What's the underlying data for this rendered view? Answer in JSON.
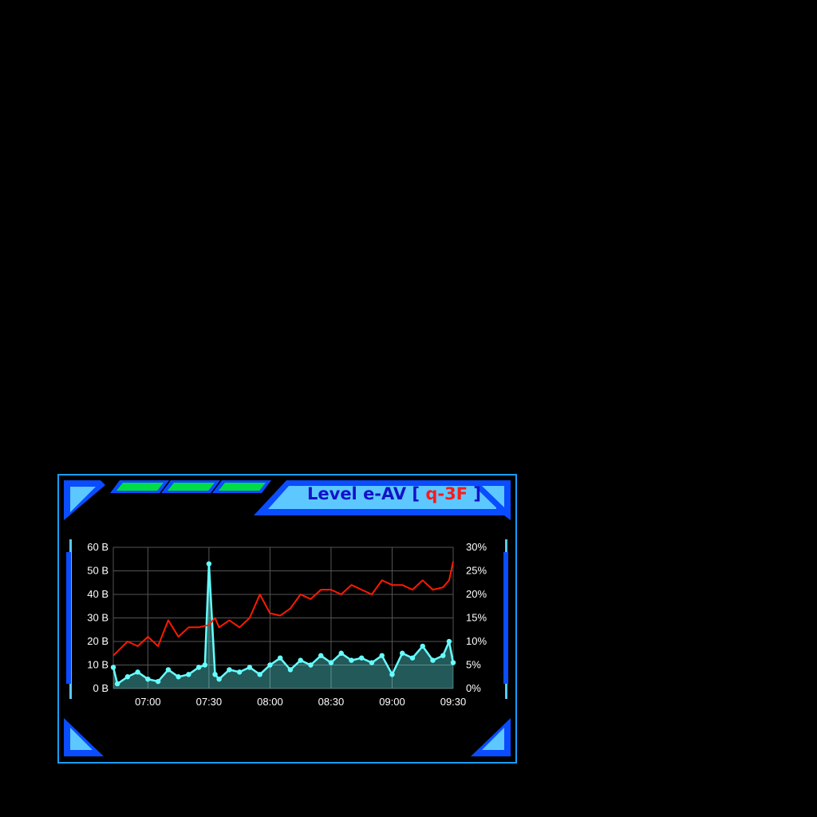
{
  "panel": {
    "title_prefix": "Level e-AV",
    "bracket_open": "[",
    "title_code": "q-3F",
    "bracket_close": "]",
    "accent": "#1a9cff",
    "indicator_color": "#00dd44"
  },
  "chart_data": {
    "type": "line",
    "x_start": "06:43",
    "x_end": "09:30",
    "x_ticks": [
      "07:00",
      "07:30",
      "08:00",
      "08:30",
      "09:00",
      "09:30"
    ],
    "left_axis": {
      "ticks": [
        "0 B",
        "10 B",
        "20 B",
        "30 B",
        "40 B",
        "50 B",
        "60 B"
      ],
      "ylim": [
        0,
        60
      ]
    },
    "right_axis": {
      "ticks": [
        "0%",
        "5%",
        "10%",
        "15%",
        "20%",
        "25%",
        "30%"
      ],
      "ylim": [
        0,
        30
      ]
    },
    "grid": true,
    "series": [
      {
        "axis": "left",
        "style": "line-markers-area",
        "color": "#66ffff",
        "x": [
          "06:43",
          "06:45",
          "06:50",
          "06:55",
          "07:00",
          "07:05",
          "07:10",
          "07:15",
          "07:20",
          "07:25",
          "07:28",
          "07:30",
          "07:33",
          "07:35",
          "07:40",
          "07:45",
          "07:50",
          "07:55",
          "08:00",
          "08:05",
          "08:10",
          "08:15",
          "08:20",
          "08:25",
          "08:30",
          "08:35",
          "08:40",
          "08:45",
          "08:50",
          "08:55",
          "09:00",
          "09:05",
          "09:10",
          "09:15",
          "09:20",
          "09:25",
          "09:28",
          "09:30"
        ],
        "values": [
          9,
          2,
          5,
          7,
          4,
          3,
          8,
          5,
          6,
          9,
          10,
          53,
          6,
          4,
          8,
          7,
          9,
          6,
          10,
          13,
          8,
          12,
          10,
          14,
          11,
          15,
          12,
          13,
          11,
          14,
          6,
          15,
          13,
          18,
          12,
          14,
          20,
          11
        ]
      },
      {
        "axis": "right",
        "style": "line",
        "color": "#ff1a00",
        "x": [
          "06:43",
          "06:50",
          "06:55",
          "07:00",
          "07:05",
          "07:10",
          "07:15",
          "07:20",
          "07:25",
          "07:30",
          "07:33",
          "07:35",
          "07:40",
          "07:45",
          "07:50",
          "07:55",
          "08:00",
          "08:05",
          "08:10",
          "08:15",
          "08:20",
          "08:25",
          "08:30",
          "08:35",
          "08:40",
          "08:45",
          "08:50",
          "08:55",
          "09:00",
          "09:05",
          "09:10",
          "09:15",
          "09:20",
          "09:25",
          "09:28",
          "09:30"
        ],
        "values": [
          7,
          10,
          9,
          11,
          9,
          14.5,
          11,
          13,
          13,
          13.5,
          15,
          13,
          14.5,
          13,
          15,
          20,
          16,
          15.5,
          17,
          20,
          19,
          21,
          21,
          20,
          22,
          21,
          20,
          23,
          22,
          22,
          21,
          23,
          21,
          21.5,
          23,
          27
        ]
      }
    ]
  }
}
